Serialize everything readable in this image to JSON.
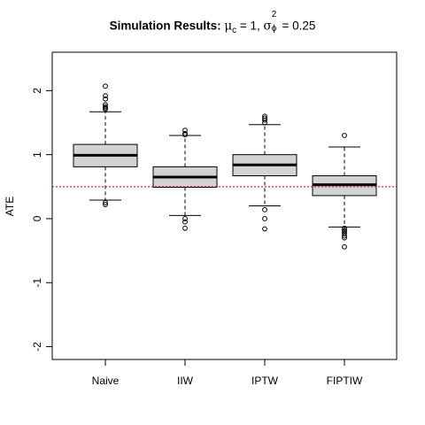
{
  "chart_data": {
    "type": "box",
    "title": {
      "bold_part": "Simulation Results:",
      "mu_symbol": "μ",
      "mu_sub": "c",
      "mu_text": " = 1, ",
      "sigma_symbol": "σ",
      "sigma_sup": "2",
      "sigma_sub": "ϕ",
      "sigma_text": " = 0.25"
    },
    "ylabel": "ATE",
    "xlabel": "",
    "ylim": [
      -2.2,
      2.6
    ],
    "yticks": [
      -2,
      -1,
      0,
      1,
      2
    ],
    "ytick_labels": [
      "-2",
      "-1",
      "0",
      "1",
      "2"
    ],
    "reference_line": {
      "y": 0.5,
      "color": "#cc0000",
      "style": "dotted"
    },
    "box_fill": "#d3d3d3",
    "categories": [
      "Naive",
      "IIW",
      "IPTW",
      "FIPTIW"
    ],
    "boxes": [
      {
        "name": "Naive",
        "whisker_low": 0.29,
        "q1": 0.81,
        "median": 0.99,
        "q3": 1.16,
        "whisker_high": 1.67,
        "outliers": [
          2.07,
          1.92,
          1.87,
          1.78,
          1.75,
          1.73,
          1.71,
          0.25,
          0.22
        ]
      },
      {
        "name": "IIW",
        "whisker_low": 0.05,
        "q1": 0.49,
        "median": 0.65,
        "q3": 0.81,
        "whisker_high": 1.3,
        "outliers": [
          1.38,
          1.33,
          1.31,
          0.0,
          -0.05,
          -0.15
        ]
      },
      {
        "name": "IPTW",
        "whisker_low": 0.2,
        "q1": 0.67,
        "median": 0.84,
        "q3": 1.0,
        "whisker_high": 1.47,
        "outliers": [
          1.6,
          1.57,
          1.54,
          1.5,
          0.14,
          0.0,
          -0.16
        ]
      },
      {
        "name": "FIPTIW",
        "whisker_low": -0.13,
        "q1": 0.36,
        "median": 0.53,
        "q3": 0.67,
        "whisker_high": 1.12,
        "outliers": [
          1.3,
          -0.15,
          -0.18,
          -0.2,
          -0.23,
          -0.27,
          -0.3,
          -0.44
        ]
      }
    ]
  }
}
